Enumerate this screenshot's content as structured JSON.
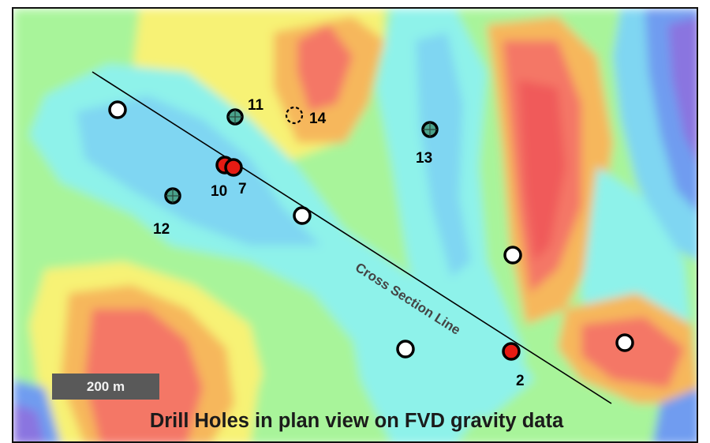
{
  "colors": {
    "very_low": "#8a74e0",
    "low": "#6f9cf0",
    "low_mid": "#7fd6f2",
    "mid": "#8ef2ea",
    "mid_high": "#a8f49a",
    "high": "#f7f274",
    "higher": "#f6b75c",
    "very_high": "#f47766",
    "drill_red": "#e51b13",
    "drill_white": "#ffffff",
    "drill_green": "#4aa38c",
    "line": "#000000"
  },
  "icons": {
    "white_hole": "open-circle-icon",
    "red_hole": "filled-red-circle-icon",
    "crosshair_hole": "crosshair-circle-icon",
    "planned_hole": "dashed-circle-icon"
  },
  "labels": {
    "cross_section": "Cross Section Line",
    "scale": "200 m",
    "caption": "Drill Holes in plan view on FVD gravity data"
  },
  "drill_holes": [
    {
      "id": "11",
      "label": "11",
      "type": "crosshair"
    },
    {
      "id": "14",
      "label": "14",
      "type": "planned"
    },
    {
      "id": "13",
      "label": "13",
      "type": "crosshair"
    },
    {
      "id": "10",
      "label": "10",
      "type": "red"
    },
    {
      "id": "7",
      "label": "7",
      "type": "red"
    },
    {
      "id": "12",
      "label": "12",
      "type": "crosshair"
    },
    {
      "id": "2",
      "label": "2",
      "type": "red"
    }
  ]
}
